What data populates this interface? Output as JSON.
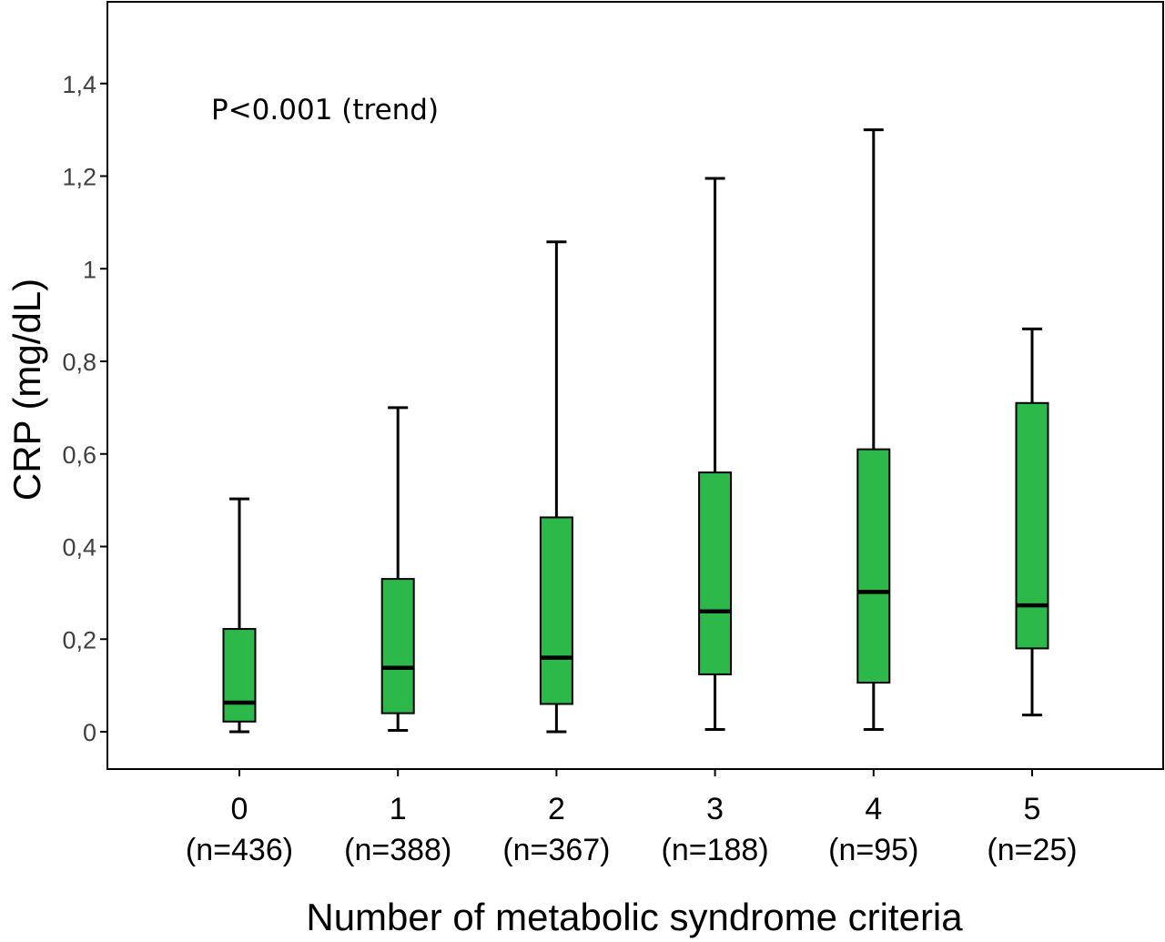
{
  "chart_data": {
    "type": "box",
    "xlabel": "Number of metabolic syndrome criteria",
    "ylabel": "CRP (mg/dL)",
    "ylim": [
      -0.08,
      1.55
    ],
    "yticks": [
      0,
      0.2,
      0.4,
      0.6,
      0.8,
      1.0,
      1.2,
      1.4
    ],
    "ytick_labels": [
      "0",
      "0,2",
      "0,4",
      "0,6",
      "0,8",
      "1",
      "1,2",
      "1,4"
    ],
    "annotation": "P<0.001 (trend)",
    "grid": false,
    "box_color": "#2db84a",
    "categories": [
      {
        "label": "0",
        "n": "(n=436)",
        "min": 0.0,
        "q1": 0.022,
        "median": 0.063,
        "q3": 0.222,
        "max": 0.503
      },
      {
        "label": "1",
        "n": "(n=388)",
        "min": 0.003,
        "q1": 0.04,
        "median": 0.138,
        "q3": 0.33,
        "max": 0.7
      },
      {
        "label": "2",
        "n": "(n=367)",
        "min": 0.0,
        "q1": 0.06,
        "median": 0.16,
        "q3": 0.463,
        "max": 1.058
      },
      {
        "label": "3",
        "n": "(n=188)",
        "min": 0.005,
        "q1": 0.124,
        "median": 0.26,
        "q3": 0.56,
        "max": 1.195
      },
      {
        "label": "4",
        "n": "(n=95)",
        "min": 0.005,
        "q1": 0.106,
        "median": 0.302,
        "q3": 0.61,
        "max": 1.3
      },
      {
        "label": "5",
        "n": "(n=25)",
        "min": 0.036,
        "q1": 0.18,
        "median": 0.273,
        "q3": 0.71,
        "max": 0.87
      }
    ]
  }
}
